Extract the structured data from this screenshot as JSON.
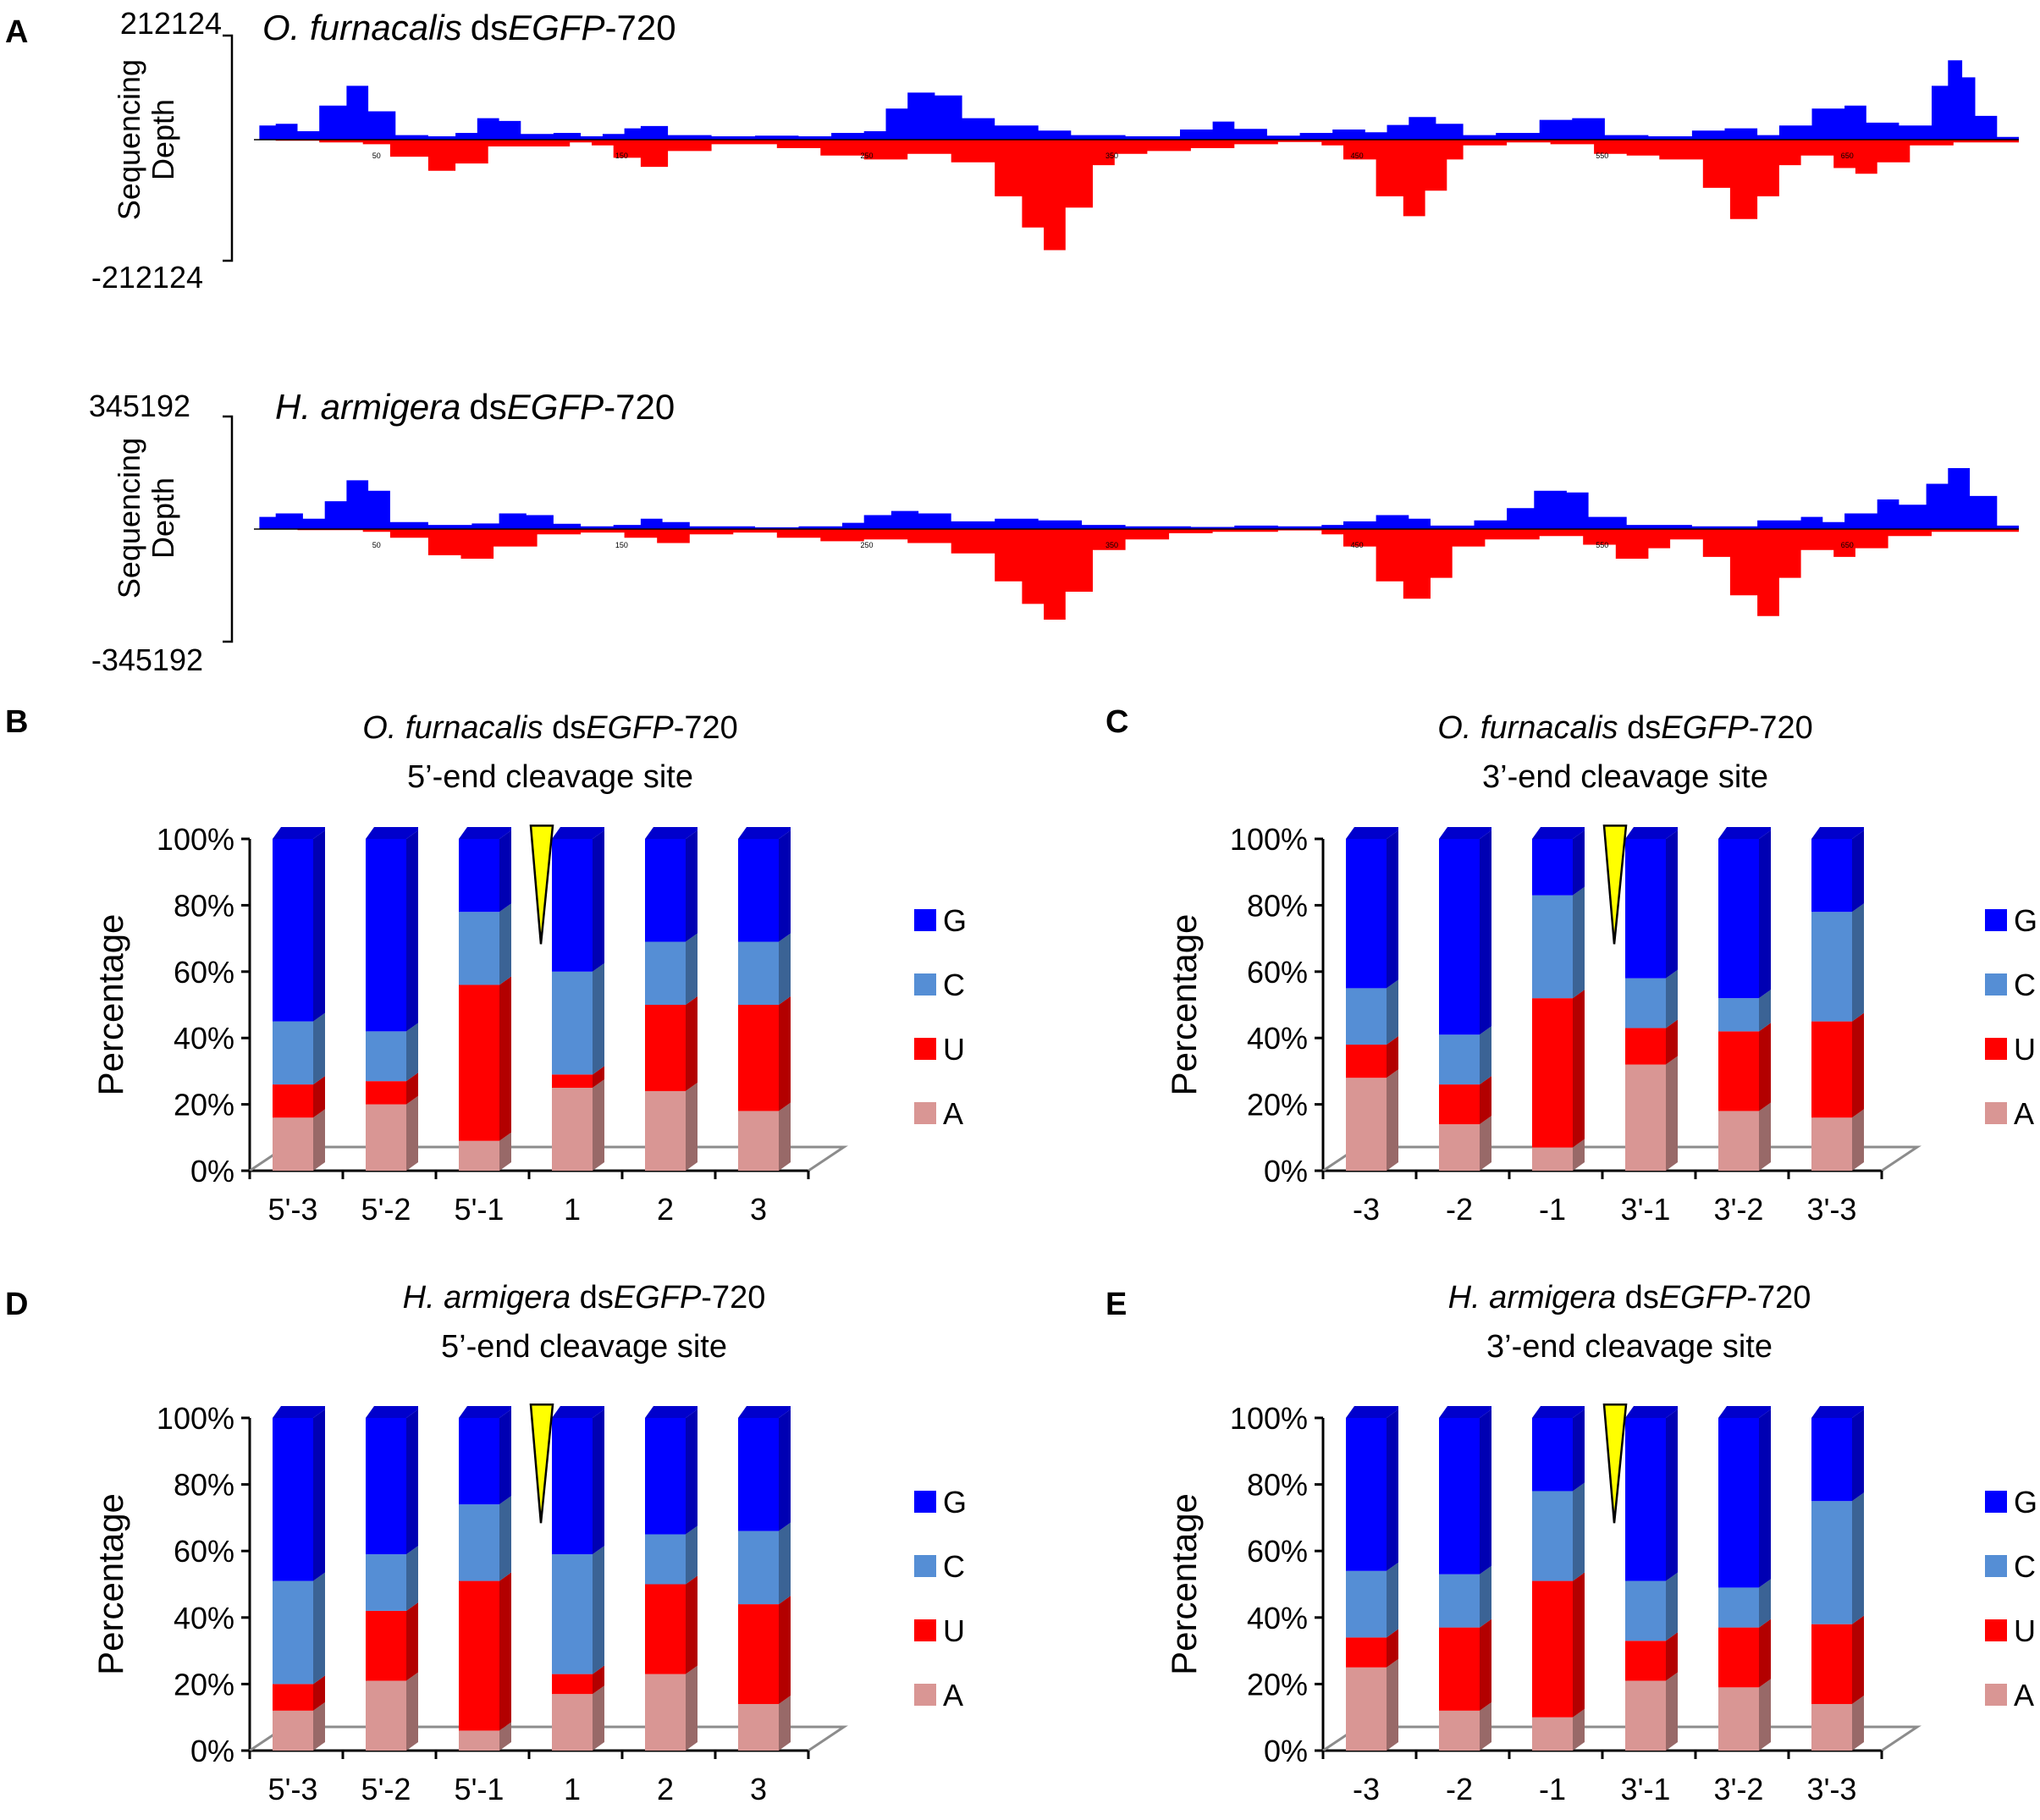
{
  "panel_letters": {
    "a": "A",
    "b": "B",
    "c": "C",
    "d": "D",
    "e": "E"
  },
  "colors": {
    "G": "#0000ff",
    "C": "#558ed5",
    "U": "#ff0000",
    "A": "#d99694",
    "depth_positive": "#0000ff",
    "depth_negative": "#ff0000",
    "marker": "#ffff00"
  },
  "legend_labels": [
    "G",
    "C",
    "U",
    "A"
  ],
  "y_axis_label": "Percentage",
  "depth_axis_label": [
    "Sequencing",
    "Depth"
  ],
  "chart_data": [
    {
      "panel": "A",
      "type": "area",
      "title": {
        "species": "O. furnacalis",
        "prefix": "ds",
        "gene": "EGFP",
        "suffix": "-720"
      },
      "ymax_label": "212124",
      "ymin_label": "-212124",
      "ylim": [
        -212124,
        212124
      ],
      "x": [
        0,
        720
      ],
      "x_ticks": [
        50,
        150,
        250,
        350,
        450,
        550,
        650
      ],
      "x_tick_labels": [
        "50",
        "150",
        "250",
        "350",
        "450",
        "550",
        "650"
      ],
      "positive_profile": [
        [
          0,
          0
        ],
        [
          5,
          25000
        ],
        [
          20,
          28000
        ],
        [
          40,
          15000
        ],
        [
          60,
          60000
        ],
        [
          85,
          95000
        ],
        [
          105,
          50000
        ],
        [
          130,
          8000
        ],
        [
          160,
          6000
        ],
        [
          185,
          12000
        ],
        [
          205,
          38000
        ],
        [
          225,
          33000
        ],
        [
          245,
          10000
        ],
        [
          275,
          12000
        ],
        [
          300,
          6000
        ],
        [
          320,
          10000
        ],
        [
          340,
          20000
        ],
        [
          355,
          24000
        ],
        [
          380,
          8000
        ],
        [
          420,
          6000
        ],
        [
          460,
          7000
        ],
        [
          500,
          6000
        ],
        [
          530,
          12000
        ],
        [
          560,
          15000
        ],
        [
          580,
          55000
        ],
        [
          600,
          83000
        ],
        [
          625,
          78000
        ],
        [
          650,
          38000
        ],
        [
          680,
          25000
        ],
        [
          720,
          16000
        ],
        [
          750,
          8000
        ],
        [
          800,
          6000
        ],
        [
          850,
          18000
        ],
        [
          880,
          32000
        ],
        [
          900,
          19000
        ],
        [
          930,
          7000
        ],
        [
          960,
          12000
        ],
        [
          990,
          18000
        ],
        [
          1020,
          13000
        ],
        [
          1040,
          26000
        ],
        [
          1060,
          40000
        ],
        [
          1085,
          28000
        ],
        [
          1110,
          8000
        ],
        [
          1140,
          12000
        ],
        [
          1180,
          35000
        ],
        [
          1210,
          38000
        ],
        [
          1240,
          8000
        ],
        [
          1280,
          6000
        ],
        [
          1320,
          16000
        ],
        [
          1350,
          20000
        ],
        [
          1380,
          8000
        ],
        [
          1400,
          25000
        ],
        [
          1430,
          55000
        ],
        [
          1460,
          60000
        ],
        [
          1480,
          30000
        ],
        [
          1510,
          25000
        ],
        [
          1540,
          95000
        ],
        [
          1555,
          140000
        ],
        [
          1568,
          110000
        ],
        [
          1580,
          42000
        ],
        [
          1600,
          5000
        ],
        [
          1620,
          0
        ]
      ],
      "negative_profile": [
        [
          0,
          0
        ],
        [
          20,
          -2000
        ],
        [
          60,
          -5000
        ],
        [
          100,
          -8000
        ],
        [
          125,
          -30000
        ],
        [
          160,
          -55000
        ],
        [
          185,
          -42000
        ],
        [
          215,
          -12000
        ],
        [
          250,
          -12000
        ],
        [
          290,
          -5000
        ],
        [
          310,
          -10000
        ],
        [
          330,
          -32000
        ],
        [
          355,
          -48000
        ],
        [
          380,
          -20000
        ],
        [
          420,
          -8000
        ],
        [
          480,
          -15000
        ],
        [
          520,
          -28000
        ],
        [
          560,
          -35000
        ],
        [
          600,
          -25000
        ],
        [
          640,
          -40000
        ],
        [
          680,
          -100000
        ],
        [
          705,
          -155000
        ],
        [
          725,
          -195000
        ],
        [
          745,
          -120000
        ],
        [
          770,
          -45000
        ],
        [
          790,
          -25000
        ],
        [
          820,
          -20000
        ],
        [
          860,
          -15000
        ],
        [
          900,
          -8000
        ],
        [
          940,
          -4000
        ],
        [
          980,
          -10000
        ],
        [
          1000,
          -35000
        ],
        [
          1030,
          -100000
        ],
        [
          1055,
          -135000
        ],
        [
          1075,
          -90000
        ],
        [
          1095,
          -35000
        ],
        [
          1110,
          -10000
        ],
        [
          1150,
          -5000
        ],
        [
          1190,
          -8000
        ],
        [
          1230,
          -25000
        ],
        [
          1260,
          -28000
        ],
        [
          1290,
          -35000
        ],
        [
          1330,
          -85000
        ],
        [
          1355,
          -140000
        ],
        [
          1380,
          -100000
        ],
        [
          1400,
          -45000
        ],
        [
          1420,
          -28000
        ],
        [
          1450,
          -50000
        ],
        [
          1470,
          -60000
        ],
        [
          1490,
          -40000
        ],
        [
          1520,
          -10000
        ],
        [
          1560,
          -5000
        ],
        [
          1620,
          0
        ]
      ]
    },
    {
      "panel": "A",
      "type": "area",
      "title": {
        "species": "H. armigera",
        "prefix": "ds",
        "gene": "EGFP",
        "suffix": "-720"
      },
      "ymax_label": "345192",
      "ymin_label": "-345192",
      "ylim": [
        -345192,
        345192
      ],
      "x": [
        0,
        720
      ],
      "x_ticks": [
        50,
        150,
        250,
        350,
        450,
        550,
        650
      ],
      "x_tick_labels": [
        "50",
        "150",
        "250",
        "350",
        "450",
        "550",
        "650"
      ],
      "positive_profile": [
        [
          0,
          0
        ],
        [
          5,
          35000
        ],
        [
          20,
          45000
        ],
        [
          45,
          30000
        ],
        [
          65,
          80000
        ],
        [
          85,
          140000
        ],
        [
          105,
          110000
        ],
        [
          125,
          20000
        ],
        [
          160,
          12000
        ],
        [
          200,
          16000
        ],
        [
          225,
          45000
        ],
        [
          250,
          40000
        ],
        [
          275,
          15000
        ],
        [
          300,
          8000
        ],
        [
          330,
          12000
        ],
        [
          355,
          30000
        ],
        [
          375,
          20000
        ],
        [
          400,
          8000
        ],
        [
          460,
          5000
        ],
        [
          500,
          8000
        ],
        [
          540,
          18000
        ],
        [
          560,
          40000
        ],
        [
          585,
          52000
        ],
        [
          610,
          45000
        ],
        [
          640,
          22000
        ],
        [
          680,
          30000
        ],
        [
          720,
          25000
        ],
        [
          760,
          12000
        ],
        [
          800,
          8000
        ],
        [
          860,
          6000
        ],
        [
          900,
          10000
        ],
        [
          940,
          8000
        ],
        [
          980,
          12000
        ],
        [
          1000,
          22000
        ],
        [
          1030,
          40000
        ],
        [
          1060,
          30000
        ],
        [
          1080,
          10000
        ],
        [
          1120,
          25000
        ],
        [
          1150,
          60000
        ],
        [
          1175,
          110000
        ],
        [
          1205,
          105000
        ],
        [
          1225,
          35000
        ],
        [
          1260,
          12000
        ],
        [
          1320,
          8000
        ],
        [
          1380,
          25000
        ],
        [
          1420,
          35000
        ],
        [
          1440,
          20000
        ],
        [
          1460,
          45000
        ],
        [
          1490,
          85000
        ],
        [
          1510,
          70000
        ],
        [
          1535,
          130000
        ],
        [
          1555,
          175000
        ],
        [
          1575,
          95000
        ],
        [
          1600,
          10000
        ],
        [
          1620,
          0
        ]
      ],
      "negative_profile": [
        [
          0,
          0
        ],
        [
          40,
          -3000
        ],
        [
          100,
          -8000
        ],
        [
          125,
          -25000
        ],
        [
          160,
          -75000
        ],
        [
          190,
          -85000
        ],
        [
          220,
          -50000
        ],
        [
          260,
          -15000
        ],
        [
          300,
          -10000
        ],
        [
          340,
          -25000
        ],
        [
          370,
          -40000
        ],
        [
          400,
          -15000
        ],
        [
          440,
          -10000
        ],
        [
          480,
          -25000
        ],
        [
          520,
          -35000
        ],
        [
          560,
          -30000
        ],
        [
          600,
          -40000
        ],
        [
          640,
          -70000
        ],
        [
          680,
          -150000
        ],
        [
          705,
          -215000
        ],
        [
          725,
          -260000
        ],
        [
          745,
          -180000
        ],
        [
          770,
          -60000
        ],
        [
          800,
          -30000
        ],
        [
          840,
          -12000
        ],
        [
          880,
          -8000
        ],
        [
          940,
          -4000
        ],
        [
          980,
          -15000
        ],
        [
          1000,
          -50000
        ],
        [
          1030,
          -150000
        ],
        [
          1055,
          -200000
        ],
        [
          1080,
          -140000
        ],
        [
          1100,
          -50000
        ],
        [
          1130,
          -30000
        ],
        [
          1180,
          -20000
        ],
        [
          1220,
          -45000
        ],
        [
          1250,
          -85000
        ],
        [
          1280,
          -55000
        ],
        [
          1300,
          -30000
        ],
        [
          1330,
          -80000
        ],
        [
          1355,
          -190000
        ],
        [
          1380,
          -250000
        ],
        [
          1400,
          -140000
        ],
        [
          1420,
          -60000
        ],
        [
          1450,
          -80000
        ],
        [
          1470,
          -55000
        ],
        [
          1500,
          -20000
        ],
        [
          1540,
          -8000
        ],
        [
          1620,
          0
        ]
      ]
    },
    {
      "panel": "B",
      "type": "stacked_bar",
      "title_line1": {
        "species": "O. furnacalis",
        "prefix": " ds",
        "gene": "EGFP",
        "suffix": "-720"
      },
      "title_line2": "5’-end cleavage site",
      "categories": [
        "5'-3",
        "5'-2",
        "5'-1",
        "1",
        "2",
        "3"
      ],
      "ylabel": "Percentage",
      "yticks": [
        "0%",
        "20%",
        "40%",
        "60%",
        "80%",
        "100%"
      ],
      "ylim": [
        0,
        100
      ],
      "cleavage_marker_after": 2,
      "series": [
        {
          "name": "A",
          "values": [
            16,
            20,
            9,
            25,
            24,
            18
          ]
        },
        {
          "name": "U",
          "values": [
            10,
            7,
            47,
            4,
            26,
            32
          ]
        },
        {
          "name": "C",
          "values": [
            19,
            15,
            22,
            31,
            19,
            19
          ]
        },
        {
          "name": "G",
          "values": [
            55,
            58,
            22,
            40,
            31,
            31
          ]
        }
      ]
    },
    {
      "panel": "C",
      "type": "stacked_bar",
      "title_line1": {
        "species": "O. furnacalis",
        "prefix": " ds",
        "gene": "EGFP",
        "suffix": "-720"
      },
      "title_line2": "3’-end cleavage site",
      "categories": [
        "-3",
        "-2",
        "-1",
        "3'-1",
        "3'-2",
        "3'-3"
      ],
      "ylabel": "Percentage",
      "yticks": [
        "0%",
        "20%",
        "40%",
        "60%",
        "80%",
        "100%"
      ],
      "ylim": [
        0,
        100
      ],
      "cleavage_marker_after": 2,
      "series": [
        {
          "name": "A",
          "values": [
            28,
            14,
            7,
            32,
            18,
            16
          ]
        },
        {
          "name": "U",
          "values": [
            10,
            12,
            45,
            11,
            24,
            29
          ]
        },
        {
          "name": "C",
          "values": [
            17,
            15,
            31,
            15,
            10,
            33
          ]
        },
        {
          "name": "G",
          "values": [
            45,
            59,
            17,
            42,
            48,
            22
          ]
        }
      ]
    },
    {
      "panel": "D",
      "type": "stacked_bar",
      "title_line1": {
        "species": "H. armigera",
        "prefix": " ds",
        "gene": "EGFP",
        "suffix": "-720"
      },
      "title_line2": "5’-end cleavage site",
      "categories": [
        "5'-3",
        "5'-2",
        "5'-1",
        "1",
        "2",
        "3"
      ],
      "ylabel": "Percentage",
      "yticks": [
        "0%",
        "20%",
        "40%",
        "60%",
        "80%",
        "100%"
      ],
      "ylim": [
        0,
        100
      ],
      "cleavage_marker_after": 2,
      "series": [
        {
          "name": "A",
          "values": [
            12,
            21,
            6,
            17,
            23,
            14
          ]
        },
        {
          "name": "U",
          "values": [
            8,
            21,
            45,
            6,
            27,
            30
          ]
        },
        {
          "name": "C",
          "values": [
            31,
            17,
            23,
            36,
            15,
            22
          ]
        },
        {
          "name": "G",
          "values": [
            49,
            41,
            26,
            41,
            35,
            34
          ]
        }
      ]
    },
    {
      "panel": "E",
      "type": "stacked_bar",
      "title_line1": {
        "species": "H. armigera",
        "prefix": " ds",
        "gene": "EGFP",
        "suffix": "-720"
      },
      "title_line2": "3’-end cleavage site",
      "categories": [
        "-3",
        "-2",
        "-1",
        "3'-1",
        "3'-2",
        "3'-3"
      ],
      "ylabel": "Percentage",
      "yticks": [
        "0%",
        "20%",
        "40%",
        "60%",
        "80%",
        "100%"
      ],
      "ylim": [
        0,
        100
      ],
      "cleavage_marker_after": 2,
      "series": [
        {
          "name": "A",
          "values": [
            25,
            12,
            10,
            21,
            19,
            14
          ]
        },
        {
          "name": "U",
          "values": [
            9,
            25,
            41,
            12,
            18,
            24
          ]
        },
        {
          "name": "C",
          "values": [
            20,
            16,
            27,
            18,
            12,
            37
          ]
        },
        {
          "name": "G",
          "values": [
            46,
            47,
            22,
            49,
            51,
            25
          ]
        }
      ]
    }
  ]
}
